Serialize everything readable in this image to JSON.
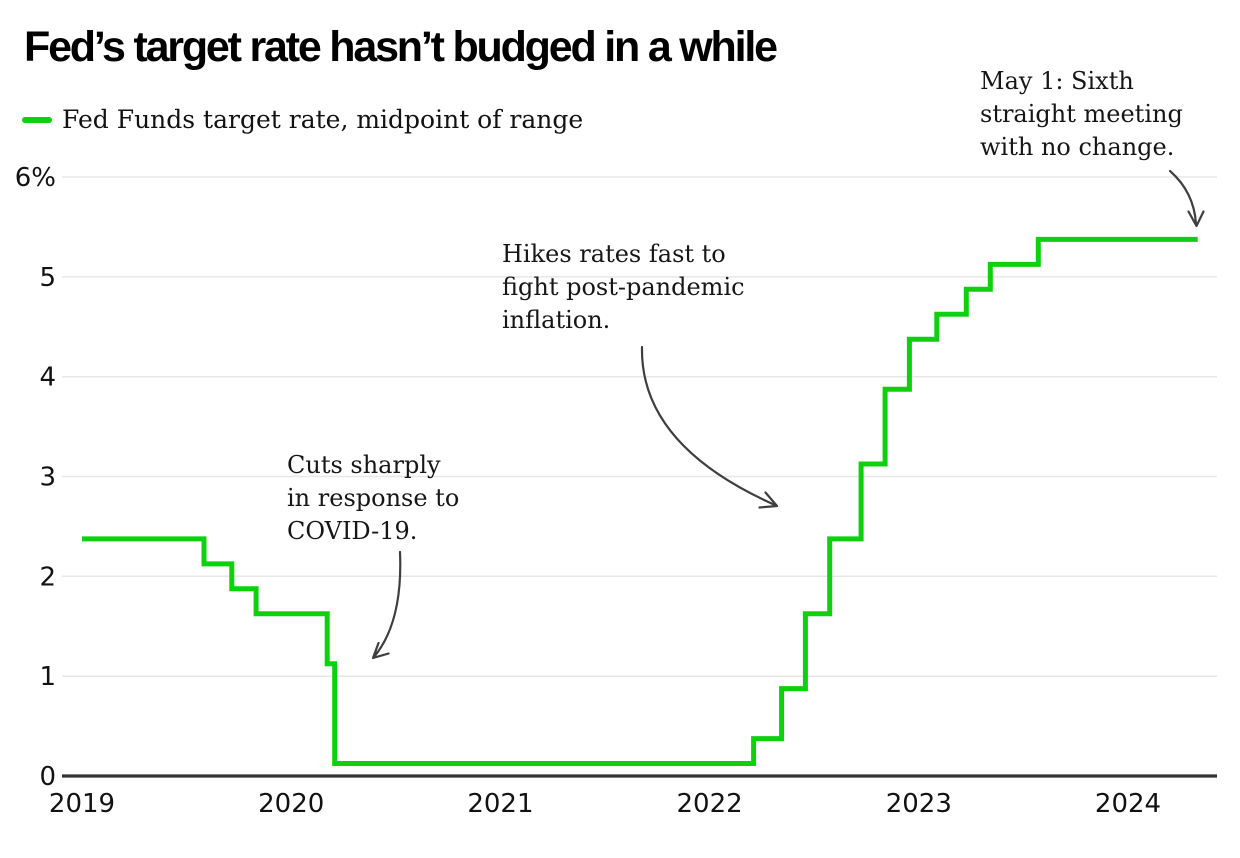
{
  "title": "Fed’s target rate hasn’t budged in a while",
  "legend": {
    "label": "Fed Funds target rate, midpoint of range"
  },
  "colors": {
    "line_green": "#0ed00e",
    "arrow": "#3f3f3f",
    "grid": "#e7e7e7",
    "axis": "#333333",
    "text": "#121212"
  },
  "chart_data": {
    "type": "line",
    "subtype": "step-after",
    "title": "Fed’s target rate hasn’t budged in a while",
    "xlabel": "",
    "ylabel": "percent",
    "ylim": [
      0,
      6
    ],
    "xlim_years": [
      2019,
      2024.45
    ],
    "grid": "horizontal",
    "legend_position": "top-left",
    "y_ticks": [
      {
        "value": 0,
        "label": "0"
      },
      {
        "value": 1,
        "label": "1"
      },
      {
        "value": 2,
        "label": "2"
      },
      {
        "value": 3,
        "label": "3"
      },
      {
        "value": 4,
        "label": "4"
      },
      {
        "value": 5,
        "label": "5"
      },
      {
        "value": 6,
        "label": "6%"
      }
    ],
    "x_ticks": [
      {
        "year": 2019,
        "label": "2019"
      },
      {
        "year": 2020,
        "label": "2020"
      },
      {
        "year": 2021,
        "label": "2021"
      },
      {
        "year": 2022,
        "label": "2022"
      },
      {
        "year": 2023,
        "label": "2023"
      },
      {
        "year": 2024,
        "label": "2024"
      }
    ],
    "series": [
      {
        "name": "Fed Funds target rate, midpoint of range",
        "end_date": "2024-05-01",
        "points": [
          {
            "date": "2019-01-01",
            "value": 2.375
          },
          {
            "date": "2019-08-01",
            "value": 2.125
          },
          {
            "date": "2019-09-19",
            "value": 1.875
          },
          {
            "date": "2019-10-31",
            "value": 1.625
          },
          {
            "date": "2020-03-03",
            "value": 1.125
          },
          {
            "date": "2020-03-16",
            "value": 0.125
          },
          {
            "date": "2022-03-17",
            "value": 0.375
          },
          {
            "date": "2022-05-05",
            "value": 0.875
          },
          {
            "date": "2022-06-16",
            "value": 1.625
          },
          {
            "date": "2022-07-28",
            "value": 2.375
          },
          {
            "date": "2022-09-22",
            "value": 3.125
          },
          {
            "date": "2022-11-03",
            "value": 3.875
          },
          {
            "date": "2022-12-15",
            "value": 4.375
          },
          {
            "date": "2023-02-02",
            "value": 4.625
          },
          {
            "date": "2023-03-23",
            "value": 4.875
          },
          {
            "date": "2023-05-04",
            "value": 5.125
          },
          {
            "date": "2023-07-27",
            "value": 5.375
          }
        ]
      }
    ],
    "annotations": [
      {
        "id": "covid-cuts",
        "lines": [
          "Cuts sharply",
          "in response to",
          "COVID-19."
        ]
      },
      {
        "id": "post-pandemic-hikes",
        "lines": [
          "Hikes rates fast to",
          "fight post-pandemic",
          "inflation."
        ]
      },
      {
        "id": "may-1-no-change",
        "lines": [
          "May 1: Sixth",
          "straight meeting",
          "with no change."
        ]
      }
    ]
  }
}
